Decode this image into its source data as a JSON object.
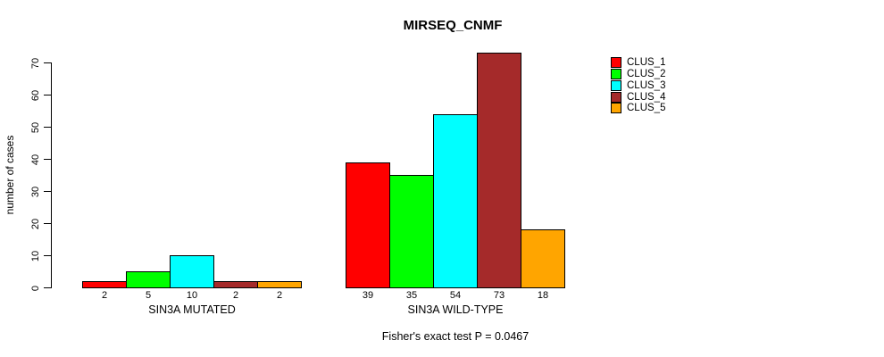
{
  "title": "MIRSEQ_CNMF",
  "ylabel": "number of cases",
  "caption": "Fisher's exact test P = 0.0467",
  "legend": {
    "items": [
      {
        "label": "CLUS_1",
        "color": "#FF0000"
      },
      {
        "label": "CLUS_2",
        "color": "#00FF00"
      },
      {
        "label": "CLUS_3",
        "color": "#00FFFF"
      },
      {
        "label": "CLUS_4",
        "color": "#A52A2A"
      },
      {
        "label": "CLUS_5",
        "color": "#FFA500"
      }
    ]
  },
  "chart_data": {
    "type": "bar",
    "title": "MIRSEQ_CNMF",
    "xlabel": "",
    "ylabel": "number of cases",
    "ylim": [
      0,
      70
    ],
    "yticks": [
      0,
      10,
      20,
      30,
      40,
      50,
      60,
      70
    ],
    "grid": false,
    "legend_position": "right",
    "bar_border_color": "#000000",
    "series": [
      {
        "name": "CLUS_1",
        "color": "#FF0000"
      },
      {
        "name": "CLUS_2",
        "color": "#00FF00"
      },
      {
        "name": "CLUS_3",
        "color": "#00FFFF"
      },
      {
        "name": "CLUS_4",
        "color": "#A52A2A"
      },
      {
        "name": "CLUS_5",
        "color": "#FFA500"
      }
    ],
    "groups": [
      {
        "label": "SIN3A MUTATED",
        "values": [
          2,
          5,
          10,
          2,
          2
        ]
      },
      {
        "label": "SIN3A WILD-TYPE",
        "values": [
          39,
          35,
          54,
          73,
          18
        ]
      }
    ],
    "value_labels_shown": true,
    "annotation": "Fisher's exact test P = 0.0467"
  }
}
